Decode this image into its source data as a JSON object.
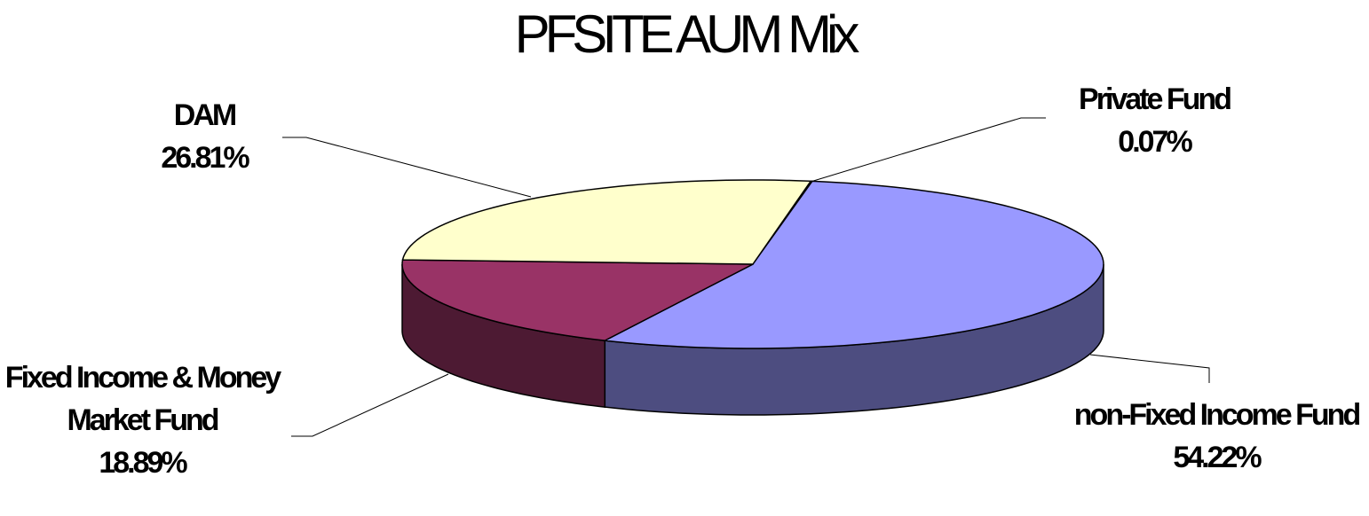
{
  "chart_data": {
    "type": "pie3d",
    "title": "PFSITE AUM Mix",
    "categories": [
      "Private Fund",
      "non-Fixed Income Fund",
      "Fixed Income & Money Market Fund",
      "DAM"
    ],
    "values": [
      0.07,
      54.22,
      18.89,
      26.81
    ],
    "value_labels": [
      "0.07%",
      "54.22%",
      "18.89%",
      "26.81%"
    ],
    "colors": [
      "#ccffff",
      "#9999ff",
      "#993366",
      "#ffffcc"
    ]
  }
}
